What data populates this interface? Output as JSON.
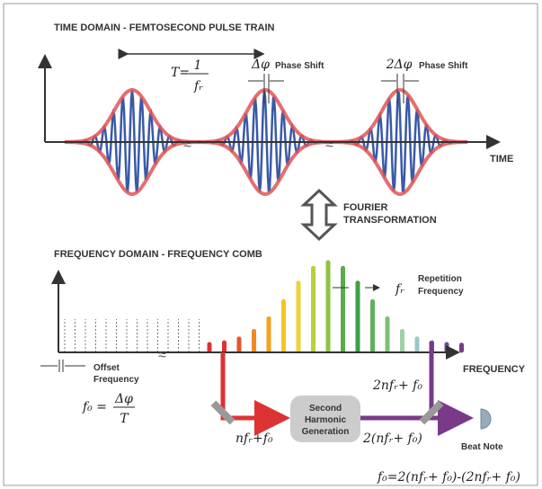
{
  "time_domain": {
    "title": "TIME DOMAIN - FEMTOSECOND PULSE TRAIN",
    "period_label": "T=",
    "period_numerator": "1",
    "period_denominator": "fᵣ",
    "phase_shift_1": "Δφ",
    "phase_shift_2": "2Δφ",
    "phase_shift_text": "Phase Shift",
    "axis_label": "TIME"
  },
  "transform": {
    "line1": "FOURIER",
    "line2": "TRANSFORMATION"
  },
  "frequency_domain": {
    "title": "FREQUENCY DOMAIN - FREQUENCY COMB",
    "spacing_symbol": "fᵣ",
    "spacing_line1": "Repetition",
    "spacing_line2": "Frequency",
    "offset_line1": "Offset",
    "offset_line2": "Frequency",
    "axis_label": "FREQUENCY",
    "offset_formula_lhs": "f₀ =",
    "offset_formula_num": "Δφ",
    "offset_formula_den": "T"
  },
  "setup": {
    "high_line": "2nfᵣ+ f₀",
    "low_line": "nfᵣ+f₀",
    "shg_line1": "Second",
    "shg_line2": "Harmonic",
    "shg_line3": "Generation",
    "doubled": "2(nfᵣ+ f₀)",
    "detector": "Beat Note",
    "result": "f₀=2(nfᵣ+ f₀)-(2nfᵣ+ f₀)"
  }
}
